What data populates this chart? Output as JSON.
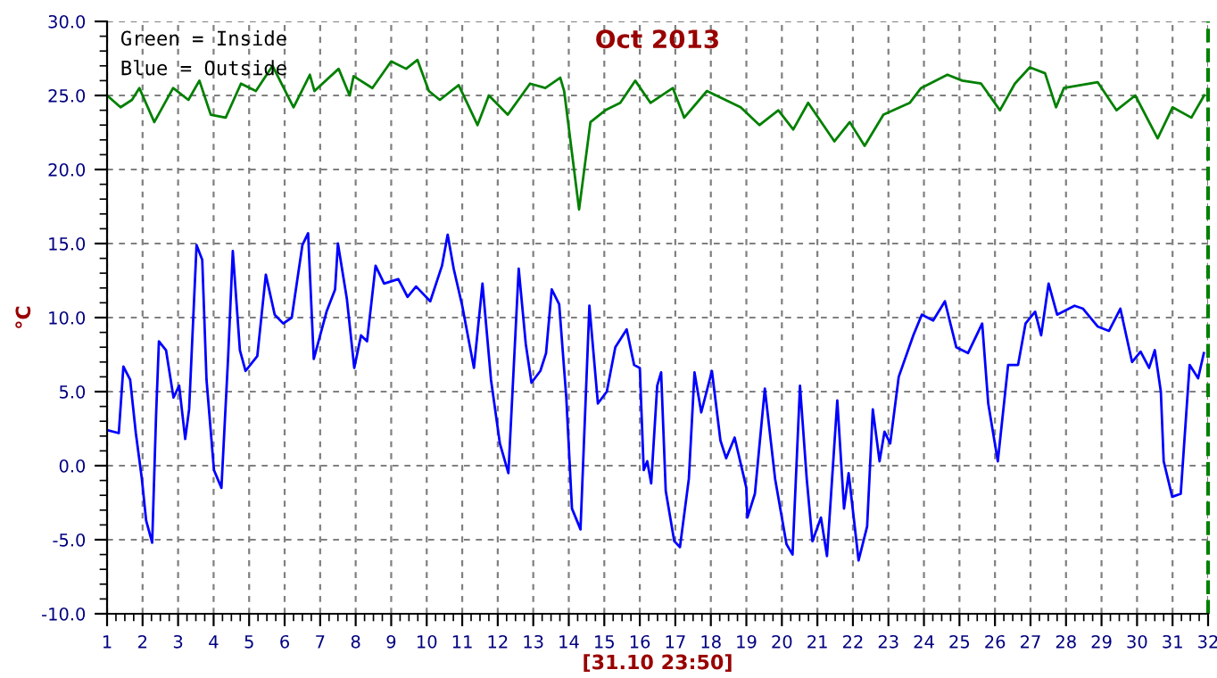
{
  "chart_data": {
    "type": "line",
    "title": "Oct 2013",
    "xlabel": "[31.10 23:50]",
    "ylabel": "°C",
    "annotations": [
      "Green = Inside",
      "Blue = Outside"
    ],
    "xlim": [
      1,
      32
    ],
    "xticks": [
      1,
      2,
      3,
      4,
      5,
      6,
      7,
      8,
      9,
      10,
      11,
      12,
      13,
      14,
      15,
      16,
      17,
      18,
      19,
      20,
      21,
      22,
      23,
      24,
      25,
      26,
      27,
      28,
      29,
      30,
      31,
      32
    ],
    "ylim": [
      -10,
      30
    ],
    "yticks": [
      {
        "value": -10,
        "label": "-10.0"
      },
      {
        "value": -5,
        "label": "-5.0"
      },
      {
        "value": 0,
        "label": "0.0"
      },
      {
        "value": 5,
        "label": "5.0"
      },
      {
        "value": 10,
        "label": "10.0"
      },
      {
        "value": 15,
        "label": "15.0"
      },
      {
        "value": 20,
        "label": "20.0"
      },
      {
        "value": 25,
        "label": "25.0"
      },
      {
        "value": 30,
        "label": "30.0"
      }
    ],
    "grid": true,
    "marker": "none",
    "line_style": "solid",
    "ref_lines": [
      {
        "axis": "x",
        "value": 32,
        "color": "#008000",
        "line_style": "dashed"
      }
    ],
    "series": [
      {
        "color": "#008000",
        "x": [
          1.0,
          1.38,
          1.7,
          1.91,
          2.33,
          2.86,
          3.29,
          3.6,
          3.92,
          4.34,
          4.77,
          5.19,
          5.66,
          6.25,
          6.71,
          6.84,
          7.52,
          7.83,
          7.94,
          8.47,
          9.0,
          9.42,
          9.74,
          10.06,
          10.37,
          10.9,
          11.43,
          11.75,
          12.28,
          12.91,
          13.34,
          13.76,
          13.87,
          14.29,
          14.61,
          15.03,
          15.45,
          15.87,
          16.3,
          16.93,
          17.25,
          17.89,
          18.84,
          19.37,
          19.9,
          20.32,
          20.74,
          21.48,
          21.91,
          22.33,
          22.86,
          23.6,
          23.92,
          24.66,
          25.08,
          25.61,
          26.14,
          26.56,
          26.98,
          27.41,
          27.72,
          27.94,
          28.89,
          29.42,
          29.95,
          30.58,
          31.0,
          31.53,
          31.89
        ],
        "values": [
          25.0,
          24.2,
          24.7,
          25.5,
          23.2,
          25.5,
          24.7,
          26.0,
          23.7,
          23.5,
          25.8,
          25.3,
          27.0,
          24.2,
          26.4,
          25.3,
          26.8,
          25.0,
          26.3,
          25.5,
          27.3,
          26.8,
          27.4,
          25.3,
          24.7,
          25.7,
          23.0,
          25.0,
          23.7,
          25.8,
          25.5,
          26.2,
          25.3,
          17.3,
          23.2,
          24.0,
          24.5,
          26.0,
          24.5,
          25.5,
          23.5,
          25.3,
          24.2,
          23.0,
          24.0,
          22.7,
          24.5,
          21.9,
          23.2,
          21.6,
          23.7,
          24.5,
          25.5,
          26.4,
          26.0,
          25.8,
          24.0,
          25.8,
          26.9,
          26.5,
          24.2,
          25.5,
          25.9,
          24.0,
          25.0,
          22.1,
          24.2,
          23.5,
          25.0
        ]
      },
      {
        "color": "#0000ff",
        "x": [
          1.0,
          1.33,
          1.46,
          1.65,
          1.81,
          1.98,
          2.1,
          2.27,
          2.38,
          2.46,
          2.66,
          2.87,
          3.03,
          3.2,
          3.31,
          3.52,
          3.68,
          3.8,
          4.01,
          4.22,
          4.41,
          4.54,
          4.74,
          4.9,
          5.23,
          5.47,
          5.72,
          5.96,
          6.2,
          6.5,
          6.66,
          6.82,
          7.18,
          7.42,
          7.5,
          7.75,
          7.96,
          8.15,
          8.32,
          8.56,
          8.8,
          9.2,
          9.46,
          9.7,
          10.1,
          10.43,
          10.59,
          10.76,
          11.0,
          11.33,
          11.57,
          11.81,
          12.06,
          12.3,
          12.59,
          12.79,
          12.95,
          13.2,
          13.36,
          13.52,
          13.73,
          13.93,
          14.09,
          14.33,
          14.58,
          14.82,
          15.07,
          15.31,
          15.63,
          15.84,
          16.0,
          16.11,
          16.21,
          16.32,
          16.49,
          16.6,
          16.73,
          16.97,
          17.13,
          17.38,
          17.54,
          17.73,
          18.03,
          18.27,
          18.43,
          18.67,
          19.0,
          19.03,
          19.24,
          19.52,
          19.81,
          20.13,
          20.3,
          20.51,
          20.7,
          20.86,
          21.1,
          21.27,
          21.56,
          21.75,
          21.88,
          22.16,
          22.4,
          22.56,
          22.75,
          22.89,
          23.05,
          23.29,
          23.7,
          23.94,
          24.26,
          24.59,
          24.91,
          25.24,
          25.64,
          25.81,
          26.08,
          26.37,
          26.65,
          26.86,
          27.13,
          27.3,
          27.51,
          27.75,
          28.24,
          28.48,
          28.89,
          29.21,
          29.53,
          29.86,
          30.1,
          30.34,
          30.5,
          30.67,
          30.75,
          30.99,
          31.23,
          31.48,
          31.72,
          31.88
        ],
        "values": [
          2.4,
          2.2,
          6.7,
          5.8,
          2.2,
          -0.9,
          -3.7,
          -5.2,
          3.4,
          8.4,
          7.8,
          4.6,
          5.4,
          1.8,
          3.8,
          14.9,
          13.9,
          5.8,
          -0.3,
          -1.5,
          7.4,
          14.5,
          7.8,
          6.4,
          7.4,
          12.9,
          10.2,
          9.6,
          10.0,
          14.9,
          15.7,
          7.2,
          10.4,
          11.9,
          15.0,
          11.3,
          6.6,
          8.8,
          8.4,
          13.5,
          12.3,
          12.6,
          11.4,
          12.1,
          11.1,
          13.5,
          15.6,
          13.3,
          10.8,
          6.6,
          12.3,
          5.8,
          1.5,
          -0.5,
          13.3,
          8.2,
          5.6,
          6.4,
          7.6,
          11.9,
          10.9,
          4.6,
          -2.9,
          -4.3,
          10.8,
          4.2,
          5.0,
          8.0,
          9.2,
          6.8,
          6.6,
          -0.3,
          0.3,
          -1.2,
          5.4,
          6.3,
          -1.7,
          -5.1,
          -5.5,
          -0.9,
          6.3,
          3.6,
          6.4,
          1.7,
          0.5,
          1.9,
          -1.5,
          -3.5,
          -1.9,
          5.2,
          -0.9,
          -5.3,
          -6.0,
          5.4,
          -0.9,
          -5.1,
          -3.5,
          -6.1,
          4.4,
          -2.9,
          -0.5,
          -6.4,
          -4.1,
          3.8,
          0.3,
          2.3,
          1.5,
          6.0,
          8.8,
          10.2,
          9.8,
          11.1,
          8.0,
          7.6,
          9.6,
          4.2,
          0.3,
          6.8,
          6.8,
          9.6,
          10.4,
          8.8,
          12.3,
          10.2,
          10.8,
          10.6,
          9.4,
          9.1,
          10.6,
          7.0,
          7.7,
          6.6,
          7.8,
          5.0,
          0.3,
          -2.1,
          -1.9,
          6.8,
          5.9,
          7.6
        ]
      }
    ]
  }
}
